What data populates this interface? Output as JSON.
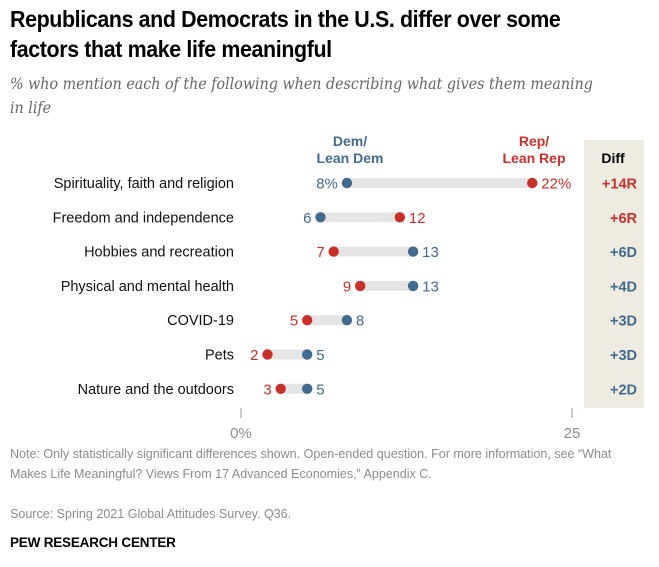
{
  "chart_data": {
    "type": "dot-plot",
    "title": "Republicans and Democrats in the U.S. differ over some factors that make life meaningful",
    "subtitle": "% who mention each of the following when describing what gives them meaning in life",
    "xlabel": "",
    "ylabel": "",
    "xlim": [
      0,
      25
    ],
    "x_ticks": [
      {
        "value": 0,
        "label": "0%"
      },
      {
        "value": 25,
        "label": "25"
      }
    ],
    "grid": false,
    "categories": [
      "Spirituality, faith and religion",
      "Freedom and independence",
      "Hobbies and recreation",
      "Physical and mental health",
      "COVID-19",
      "Pets",
      "Nature and the outdoors"
    ],
    "series": [
      {
        "name": "Dem/Lean Dem",
        "legend_lines": [
          "Dem/",
          "Lean Dem"
        ],
        "color": "#436a8f",
        "values": [
          8,
          6,
          13,
          13,
          8,
          5,
          5
        ]
      },
      {
        "name": "Rep/Lean Rep",
        "legend_lines": [
          "Rep/",
          "Lean Rep"
        ],
        "color": "#c9302c",
        "values": [
          22,
          12,
          7,
          9,
          5,
          2,
          3
        ]
      }
    ],
    "value_labels": {
      "dem": [
        "8%",
        "6",
        "13",
        "13",
        "8",
        "5",
        "5"
      ],
      "rep": [
        "22%",
        "12",
        "7",
        "9",
        "5",
        "2",
        "3"
      ]
    },
    "diff": {
      "header": "Diff",
      "values": [
        "+14R",
        "+6R",
        "+6D",
        "+4D",
        "+3D",
        "+3D",
        "+2D"
      ],
      "party": [
        "R",
        "R",
        "D",
        "D",
        "D",
        "D",
        "D"
      ]
    },
    "legend_placement": "top"
  },
  "colors": {
    "dem": "#436a8f",
    "rep": "#c9302c",
    "bar": "#e5e5e5",
    "diff_bg": "#eeece1",
    "axis": "#999999"
  },
  "header": {
    "title": "Republicans and Democrats in the U.S. differ over some factors that make life meaningful",
    "subtitle": "% who mention each of the following when describing what gives them meaning in life"
  },
  "footer": {
    "note": "Note: Only statistically significant differences shown. Open-ended question.  For more information, see “What Makes Life Meaningful? Views From 17 Advanced Economies,” Appendix C.",
    "source": "Source: Spring 2021 Global Attitudes Survey. Q36.",
    "brand": "PEW RESEARCH CENTER"
  }
}
